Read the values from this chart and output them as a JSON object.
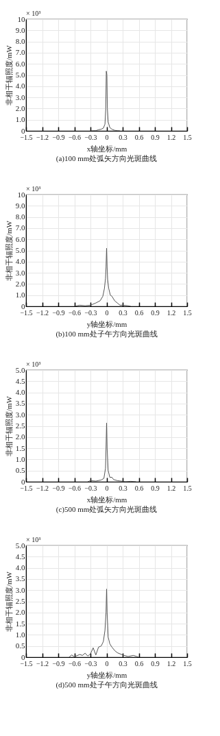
{
  "chart_data": [
    {
      "type": "line",
      "title": "(a)100 mm处弧矢方向光斑曲线",
      "xlabel": "x轴坐标/mm",
      "ylabel": "非相干辐照度/mW",
      "annotations": [
        "× 10³"
      ],
      "x": [
        -0.3,
        -0.2,
        -0.15,
        -0.1,
        -0.06,
        -0.03,
        -0.015,
        -0.005,
        0.005,
        0.015,
        0.03,
        0.06,
        0.1,
        0.15,
        0.2,
        0.25
      ],
      "series": [
        {
          "color": "#555555",
          "values": [
            0,
            0.02,
            0.1,
            0.15,
            0.25,
            0.6,
            2.0,
            5.35,
            5.0,
            2.0,
            0.8,
            0.3,
            0.15,
            0.05,
            0.02,
            0
          ]
        }
      ],
      "xlim": [
        -1.5,
        1.5
      ],
      "xticks": [
        {
          "value": -1.5,
          "label": "−1.5"
        },
        {
          "value": -1.2,
          "label": "−1.2"
        },
        {
          "value": -0.9,
          "label": "−0.9"
        },
        {
          "value": -0.6,
          "label": "−0.6"
        },
        {
          "value": -0.3,
          "label": "−0.3"
        },
        0,
        0.3,
        0.6,
        0.9,
        1.2,
        1.5
      ],
      "ylim": [
        0,
        10
      ],
      "yticks": [
        0,
        {
          "value": 1,
          "label": "1.0"
        },
        {
          "value": 2,
          "label": "2.0"
        },
        {
          "value": 3,
          "label": "3.0"
        },
        {
          "value": 4,
          "label": "4.0"
        },
        {
          "value": 5,
          "label": "5.0"
        },
        {
          "value": 6,
          "label": "6.0"
        },
        {
          "value": 7,
          "label": "7.0"
        },
        {
          "value": 8,
          "label": "8.0"
        },
        {
          "value": 9,
          "label": "9.0"
        },
        10
      ],
      "grid": true
    },
    {
      "type": "line",
      "title": "(b)100 mm处子午方向光斑曲线",
      "xlabel": "y轴坐标/mm",
      "ylabel": "非相干辐照度/mW",
      "annotations": [
        "× 10³"
      ],
      "x": [
        -0.6,
        -0.5,
        -0.4,
        -0.3,
        -0.2,
        -0.12,
        -0.07,
        -0.04,
        -0.02,
        -0.01,
        0,
        0.01,
        0.02,
        0.04,
        0.07,
        0.1,
        0.15,
        0.2,
        0.25,
        0.3,
        0.4,
        0.45
      ],
      "series": [
        {
          "color": "#555555",
          "values": [
            0,
            0.1,
            0.05,
            0.1,
            0.3,
            0.5,
            0.9,
            1.6,
            2.5,
            3.5,
            5.2,
            3.5,
            2.4,
            1.6,
            1.0,
            0.9,
            0.5,
            0.3,
            0.1,
            0.1,
            0.05,
            0
          ]
        }
      ],
      "xlim": [
        -1.5,
        1.5
      ],
      "xticks": [
        {
          "value": -1.5,
          "label": "−1.5"
        },
        {
          "value": -1.2,
          "label": "−1.2"
        },
        {
          "value": -0.9,
          "label": "−0.9"
        },
        {
          "value": -0.6,
          "label": "−0.6"
        },
        {
          "value": -0.3,
          "label": "−0.3"
        },
        0,
        0.3,
        0.6,
        0.9,
        1.2,
        1.5
      ],
      "ylim": [
        0,
        10
      ],
      "yticks": [
        0,
        {
          "value": 1,
          "label": "1.0"
        },
        {
          "value": 2,
          "label": "2.0"
        },
        {
          "value": 3,
          "label": "3.0"
        },
        {
          "value": 4,
          "label": "4.0"
        },
        {
          "value": 5,
          "label": "5.0"
        },
        {
          "value": 6,
          "label": "6.0"
        },
        {
          "value": 7,
          "label": "7.0"
        },
        {
          "value": 8,
          "label": "8.0"
        },
        {
          "value": 9,
          "label": "9.0"
        },
        10
      ],
      "grid": true
    },
    {
      "type": "line",
      "title": "(c)500 mm处弧矢方向光斑曲线",
      "xlabel": "x轴坐标/mm",
      "ylabel": "非相干辐照度/mW",
      "annotations": [
        "× 10³"
      ],
      "x": [
        -0.35,
        -0.3,
        -0.2,
        -0.1,
        -0.05,
        -0.02,
        -0.01,
        0,
        0.01,
        0.03,
        0.06,
        0.1,
        0.13,
        0.2,
        0.3,
        0.35,
        0.45,
        0.55
      ],
      "series": [
        {
          "color": "#555555",
          "values": [
            0,
            0.05,
            0.03,
            0.08,
            0.15,
            0.6,
            1.5,
            2.63,
            1.5,
            0.5,
            0.2,
            0.2,
            0.1,
            0.05,
            0.02,
            0,
            0.02,
            0
          ]
        }
      ],
      "xlim": [
        -1.5,
        1.5
      ],
      "xticks": [
        {
          "value": -1.5,
          "label": "−1.5"
        },
        {
          "value": -1.2,
          "label": "−1.2"
        },
        {
          "value": -0.9,
          "label": "−0.9"
        },
        {
          "value": -0.6,
          "label": "−0.6"
        },
        {
          "value": -0.3,
          "label": "−0.3"
        },
        0,
        0.3,
        0.6,
        0.9,
        1.2,
        1.5
      ],
      "ylim": [
        0,
        5
      ],
      "yticks": [
        0,
        0.5,
        {
          "value": 1,
          "label": "1.0"
        },
        1.5,
        {
          "value": 2,
          "label": "2.0"
        },
        2.5,
        {
          "value": 3,
          "label": "3.0"
        },
        3.5,
        {
          "value": 4,
          "label": "4.0"
        },
        4.5,
        {
          "value": 5,
          "label": "5.0"
        }
      ],
      "grid": true
    },
    {
      "type": "line",
      "title": "(d)500 mm处子午方向光斑曲线",
      "xlabel": "y轴坐标/mm",
      "ylabel": "非相干辐照度/mW",
      "annotations": [
        "× 10³"
      ],
      "x": [
        -0.7,
        -0.65,
        -0.6,
        -0.5,
        -0.45,
        -0.4,
        -0.35,
        -0.3,
        -0.25,
        -0.2,
        -0.15,
        -0.1,
        -0.06,
        -0.03,
        -0.01,
        0,
        0.01,
        0.03,
        0.06,
        0.1,
        0.15,
        0.2,
        0.3,
        0.4,
        0.5,
        0.6
      ],
      "series": [
        {
          "color": "#555555",
          "values": [
            0,
            0.1,
            0.02,
            0.12,
            0.08,
            0.18,
            0.05,
            0.15,
            0.42,
            0.1,
            0.45,
            0.5,
            0.7,
            1.2,
            2.0,
            3.05,
            2.0,
            0.9,
            0.6,
            0.45,
            0.3,
            0.2,
            0.1,
            0.03,
            0.08,
            0
          ]
        }
      ],
      "xlim": [
        -1.5,
        1.5
      ],
      "xticks": [
        {
          "value": -1.5,
          "label": "−1.5"
        },
        {
          "value": -1.2,
          "label": "−1.2"
        },
        {
          "value": -0.9,
          "label": "−0.9"
        },
        {
          "value": -0.6,
          "label": "−0.6"
        },
        {
          "value": -0.3,
          "label": "−0.3"
        },
        0,
        0.3,
        0.6,
        0.9,
        1.2,
        1.5
      ],
      "ylim": [
        0,
        5
      ],
      "yticks": [
        0,
        0.5,
        {
          "value": 1,
          "label": "1.0"
        },
        1.5,
        {
          "value": 2,
          "label": "2.0"
        },
        2.5,
        {
          "value": 3,
          "label": "3.0"
        },
        3.5,
        {
          "value": 4,
          "label": "4.0"
        },
        4.5,
        {
          "value": 5,
          "label": "5.0"
        }
      ],
      "grid": true
    }
  ]
}
